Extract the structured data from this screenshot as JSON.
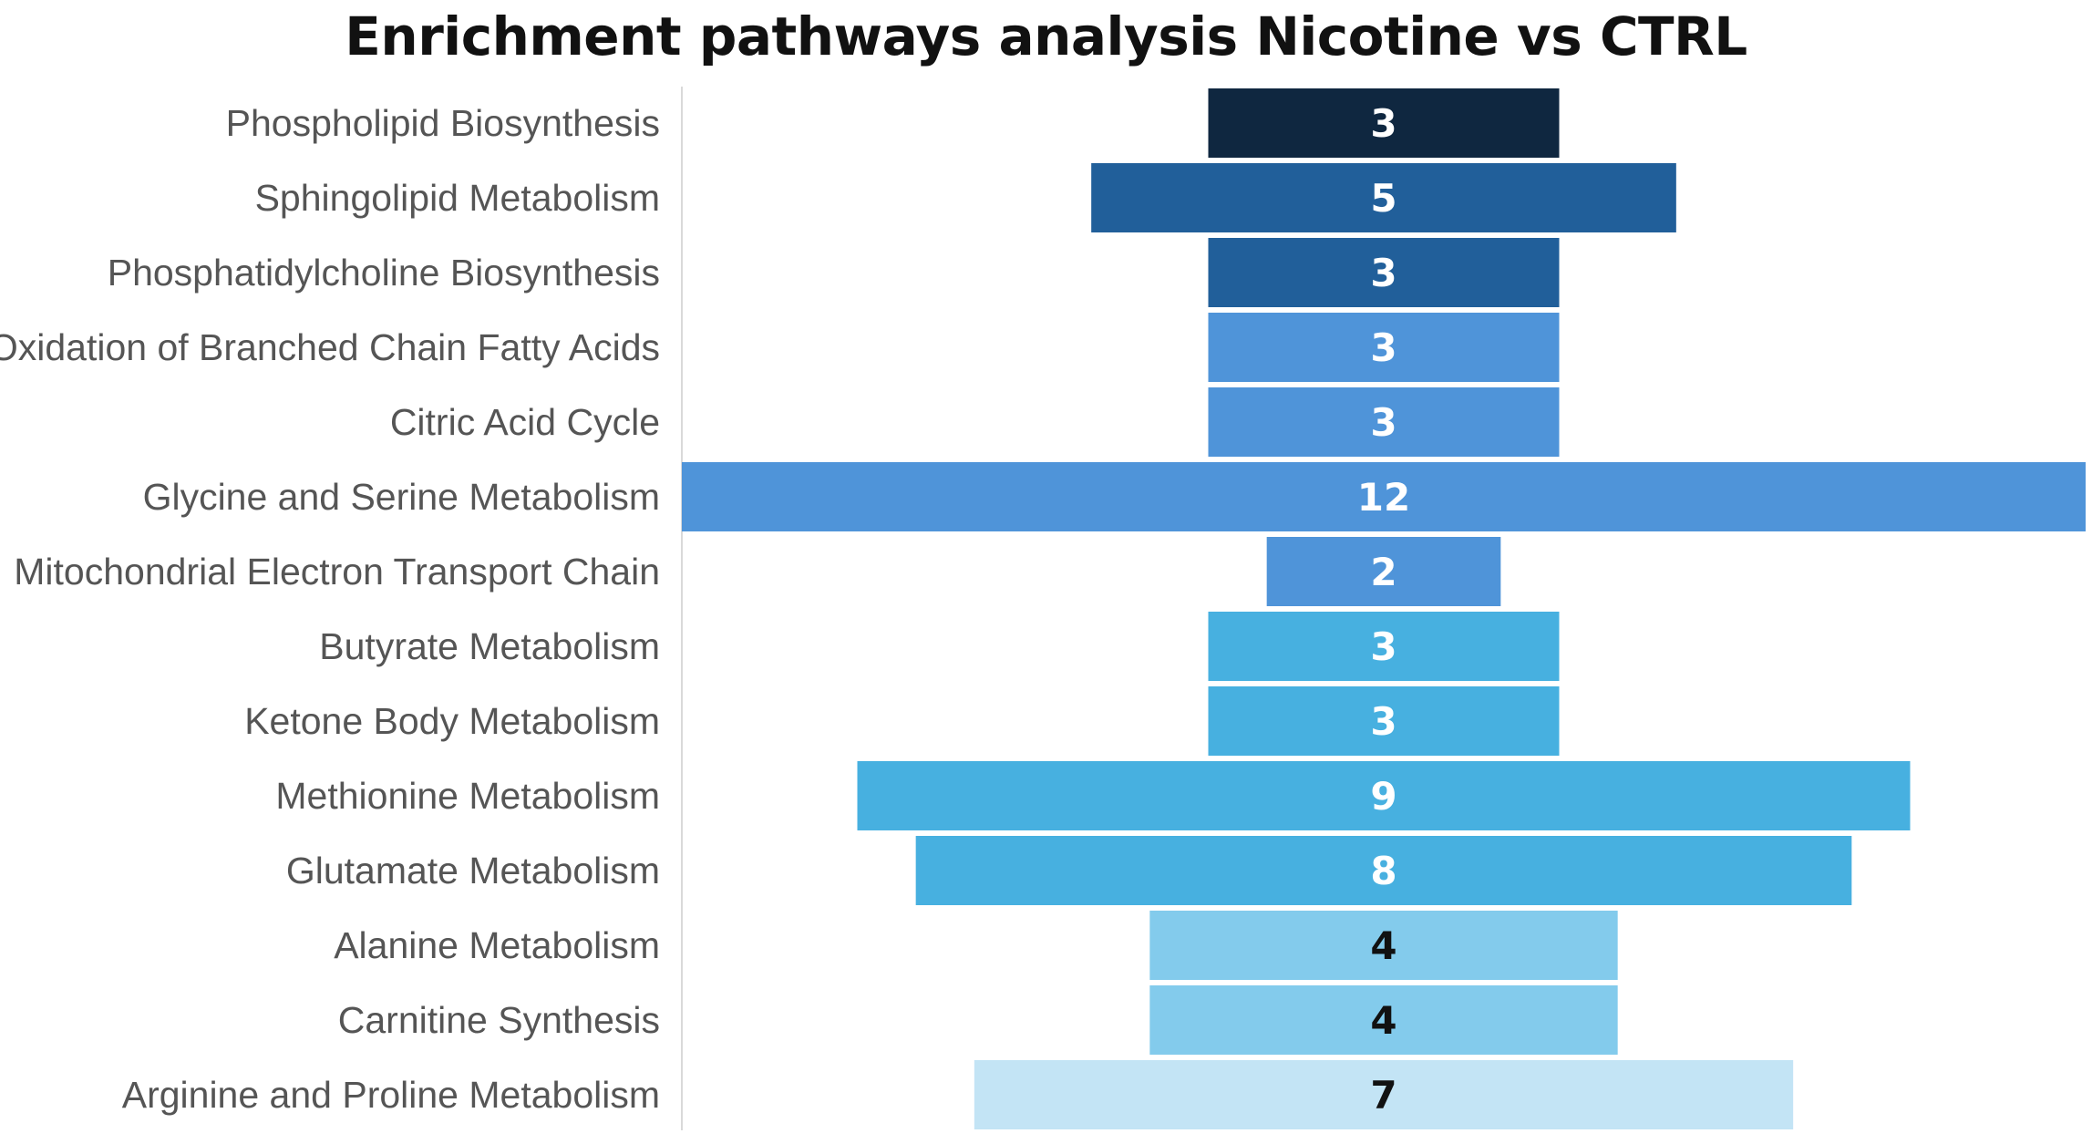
{
  "chart_data": {
    "type": "bar",
    "orientation": "horizontal-funnel",
    "title": "Enrichment pathways analysis Nicotine vs CTRL",
    "xlabel": "",
    "ylabel": "",
    "xlim": [
      0,
      12
    ],
    "grid": false,
    "legend": "none",
    "categories": [
      "Phospholipid Biosynthesis",
      "Sphingolipid Metabolism",
      "Phosphatidylcholine Biosynthesis",
      "Oxidation of Branched Chain Fatty Acids",
      "Citric Acid Cycle",
      "Glycine and Serine Metabolism",
      "Mitochondrial Electron Transport Chain",
      "Butyrate Metabolism",
      "Ketone Body Metabolism",
      "Methionine Metabolism",
      "Glutamate Metabolism",
      "Alanine Metabolism",
      "Carnitine Synthesis",
      "Arginine and Proline Metabolism"
    ],
    "values": [
      3,
      5,
      3,
      3,
      3,
      12,
      2,
      3,
      3,
      9,
      8,
      4,
      4,
      7
    ],
    "bar_colors": [
      "#0f2740",
      "#215f9a",
      "#215f9a",
      "#4f94d9",
      "#4f94d9",
      "#4f94d9",
      "#4f94d9",
      "#47b0e0",
      "#47b0e0",
      "#47b0e0",
      "#47b0e0",
      "#83cbec",
      "#83cbec",
      "#c3e4f5"
    ],
    "label_colors": [
      "#ffffff",
      "#ffffff",
      "#ffffff",
      "#ffffff",
      "#ffffff",
      "#ffffff",
      "#ffffff",
      "#ffffff",
      "#ffffff",
      "#ffffff",
      "#ffffff",
      "#111111",
      "#111111",
      "#111111"
    ]
  }
}
